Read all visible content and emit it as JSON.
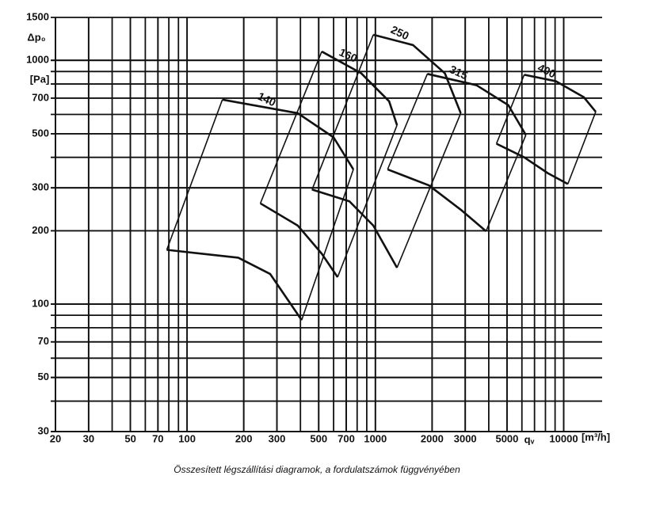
{
  "chart_data": {
    "type": "line",
    "log_x": true,
    "log_y": true,
    "grid": true,
    "color": "#111111",
    "y_label": "Δp₀",
    "y_unit": "[Pa]",
    "x_label": "qᵥ",
    "x_unit": "[m³/h]",
    "caption": "Összesített légszállítási diagramok, a fordulatszámok függvényében",
    "xlim": [
      20,
      16000
    ],
    "ylim": [
      30,
      1500
    ],
    "xticks": [
      20,
      30,
      50,
      70,
      100,
      200,
      300,
      500,
      700,
      1000,
      2000,
      3000,
      5000,
      10000
    ],
    "yticks": [
      30,
      50,
      70,
      100,
      200,
      300,
      500,
      700,
      1000,
      1500
    ],
    "series": [
      {
        "name": "140",
        "x": [
          154,
          387,
          600,
          764
        ],
        "values": [
          690,
          607,
          483,
          357
        ],
        "lower_x": [
          78,
          187,
          276,
          406
        ],
        "lower_values": [
          167,
          155,
          133,
          86
        ]
      },
      {
        "name": "160",
        "x": [
          519,
          841,
          1183,
          1303
        ],
        "values": [
          1087,
          885,
          679,
          542
        ],
        "lower_x": [
          245,
          387,
          519,
          630
        ],
        "lower_values": [
          259,
          210,
          161,
          129
        ]
      },
      {
        "name": "250",
        "x": [
          975,
          1585,
          2339,
          2840
        ],
        "values": [
          1274,
          1155,
          885,
          607
        ],
        "lower_x": [
          461,
          728,
          975,
          1303
        ],
        "lower_values": [
          295,
          264,
          210,
          141
        ]
      },
      {
        "name": "315",
        "x": [
          1888,
          3440,
          5080,
          6300
        ],
        "values": [
          880,
          791,
          655,
          494
        ],
        "lower_x": [
          1161,
          1923,
          2840,
          3870
        ],
        "lower_values": [
          357,
          307,
          244,
          199
        ]
      },
      {
        "name": "400",
        "x": [
          6170,
          9100,
          12790,
          14800
        ],
        "values": [
          873,
          821,
          706,
          615
        ],
        "lower_x": [
          4395,
          6170,
          8260,
          10520
        ],
        "lower_values": [
          455,
          400,
          344,
          311
        ]
      }
    ]
  }
}
